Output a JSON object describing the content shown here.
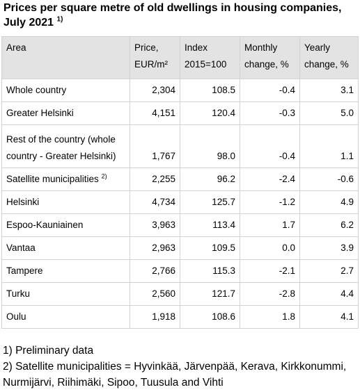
{
  "title": {
    "text": "Prices per square metre of old dwellings in housing companies, July 2021",
    "note_ref": "1)"
  },
  "table": {
    "headers": [
      {
        "line1": "Area",
        "line2": ""
      },
      {
        "line1": "Price,",
        "line2": "EUR/m²"
      },
      {
        "line1": "Index",
        "line2": "2015=100"
      },
      {
        "line1": "Monthly",
        "line2": "change, %"
      },
      {
        "line1": "Yearly",
        "line2": "change, %"
      }
    ],
    "rows": [
      {
        "area": "Whole country",
        "note_ref": "",
        "price": "2,304",
        "index": "108.5",
        "monthly": "-0.4",
        "yearly": "3.1"
      },
      {
        "area": "Greater Helsinki",
        "note_ref": "",
        "price": "4,151",
        "index": "120.4",
        "monthly": "-0.3",
        "yearly": "5.0"
      },
      {
        "area": "Rest of the country (whole country - Greater Helsinki)",
        "note_ref": "",
        "price": "1,767",
        "index": "98.0",
        "monthly": "-0.4",
        "yearly": "1.1"
      },
      {
        "area": "Satellite municipalities",
        "note_ref": "2)",
        "price": "2,255",
        "index": "96.2",
        "monthly": "-2.4",
        "yearly": "-0.6"
      },
      {
        "area": "Helsinki",
        "note_ref": "",
        "price": "4,734",
        "index": "125.7",
        "monthly": "-1.2",
        "yearly": "4.9"
      },
      {
        "area": "Espoo-Kauniainen",
        "note_ref": "",
        "price": "3,963",
        "index": "113.4",
        "monthly": "1.7",
        "yearly": "6.2"
      },
      {
        "area": "Vantaa",
        "note_ref": "",
        "price": "2,963",
        "index": "109.5",
        "monthly": "0.0",
        "yearly": "3.9"
      },
      {
        "area": "Tampere",
        "note_ref": "",
        "price": "2,766",
        "index": "115.3",
        "monthly": "-2.1",
        "yearly": "2.7"
      },
      {
        "area": "Turku",
        "note_ref": "",
        "price": "2,560",
        "index": "121.7",
        "monthly": "-2.8",
        "yearly": "4.4"
      },
      {
        "area": "Oulu",
        "note_ref": "",
        "price": "1,918",
        "index": "108.6",
        "monthly": "1.8",
        "yearly": "4.1"
      }
    ]
  },
  "footnotes": [
    "1) Preliminary data",
    "2) Satellite municipalities = Hyvinkää, Järvenpää, Kerava, Kirkkonummi, Nurmijärvi, Riihimäki, Sipoo, Tuusula and Vihti"
  ],
  "colors": {
    "header_background": "#e3e3e3",
    "grid_lines": "#d2d2d2"
  }
}
